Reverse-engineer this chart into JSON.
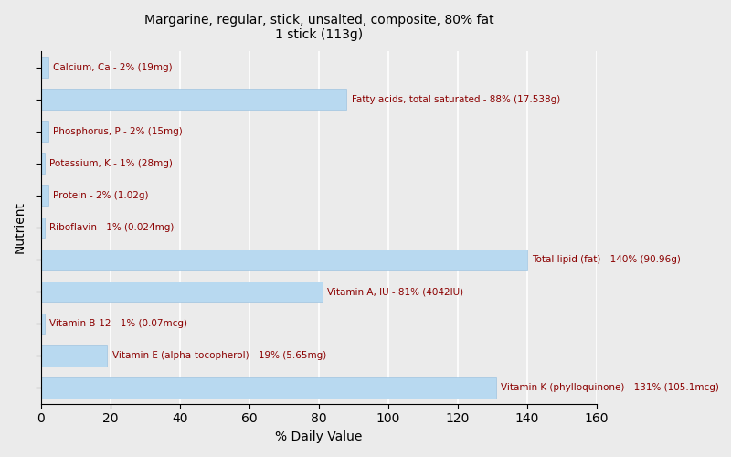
{
  "title_line1": "Margarine, regular, stick, unsalted, composite, 80% fat",
  "title_line2": "1 stick (113g)",
  "xlabel": "% Daily Value",
  "ylabel": "Nutrient",
  "background_color": "#ebebeb",
  "bar_color": "#b8d9f0",
  "bar_edge_color": "#a0c4e0",
  "text_color": "#8b0000",
  "xlim": [
    0,
    160
  ],
  "xticks": [
    0,
    20,
    40,
    60,
    80,
    100,
    120,
    140,
    160
  ],
  "nutrients": [
    {
      "label": "Calcium, Ca - 2% (19mg)",
      "value": 2
    },
    {
      "label": "Fatty acids, total saturated - 88% (17.538g)",
      "value": 88
    },
    {
      "label": "Phosphorus, P - 2% (15mg)",
      "value": 2
    },
    {
      "label": "Potassium, K - 1% (28mg)",
      "value": 1
    },
    {
      "label": "Protein - 2% (1.02g)",
      "value": 2
    },
    {
      "label": "Riboflavin - 1% (0.024mg)",
      "value": 1
    },
    {
      "label": "Total lipid (fat) - 140% (90.96g)",
      "value": 140
    },
    {
      "label": "Vitamin A, IU - 81% (4042IU)",
      "value": 81
    },
    {
      "label": "Vitamin B-12 - 1% (0.07mcg)",
      "value": 1
    },
    {
      "label": "Vitamin E (alpha-tocopherol) - 19% (5.65mg)",
      "value": 19
    },
    {
      "label": "Vitamin K (phylloquinone) - 131% (105.1mcg)",
      "value": 131
    }
  ]
}
